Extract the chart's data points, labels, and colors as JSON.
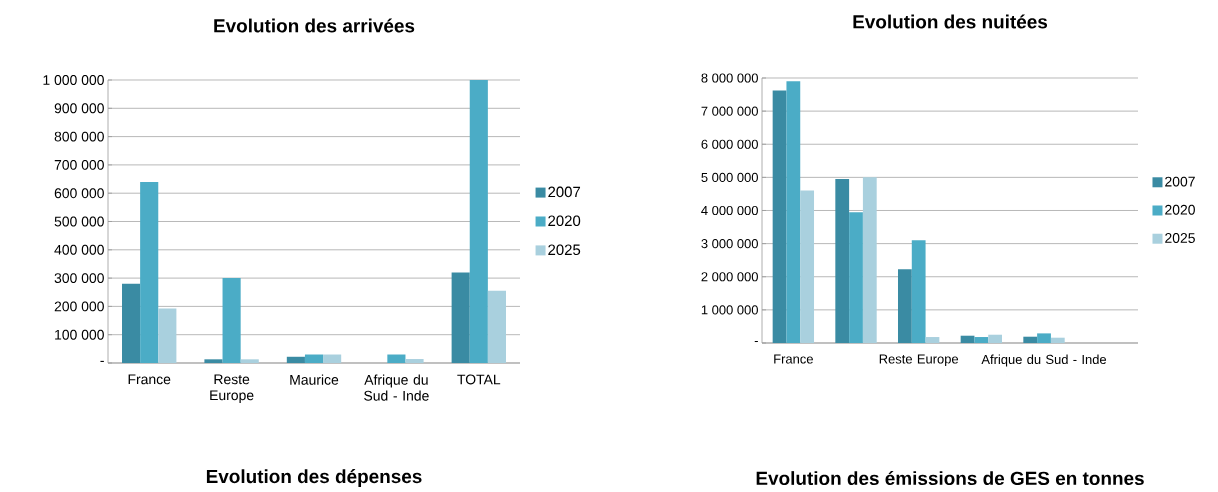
{
  "chart_data": [
    {
      "type": "bar",
      "title": "Evolution des arrivées",
      "categories": [
        "France",
        "Reste Europe",
        "Maurice",
        "Afrique du Sud - Inde",
        "TOTAL"
      ],
      "series": [
        {
          "name": "2007",
          "color": "#3a8ba3",
          "values": [
            280000,
            13000,
            22000,
            null,
            320000
          ]
        },
        {
          "name": "2020",
          "color": "#4bacc6",
          "values": [
            640000,
            300000,
            30000,
            30000,
            1000000
          ]
        },
        {
          "name": "2025",
          "color": "#a9d0de",
          "values": [
            193000,
            13000,
            30000,
            14000,
            255000
          ]
        }
      ],
      "ylim": [
        0,
        1000000
      ],
      "yticks": [
        {
          "value": 0,
          "label": "-"
        },
        {
          "value": 100000,
          "label": "100 000"
        },
        {
          "value": 200000,
          "label": "200 000"
        },
        {
          "value": 300000,
          "label": "300 000"
        },
        {
          "value": 400000,
          "label": "400 000"
        },
        {
          "value": 500000,
          "label": "500 000"
        },
        {
          "value": 600000,
          "label": "600 000"
        },
        {
          "value": 700000,
          "label": "700 000"
        },
        {
          "value": 800000,
          "label": "800 000"
        },
        {
          "value": 900000,
          "label": "900 000"
        },
        {
          "value": 1000000,
          "label": "1 000 000"
        }
      ],
      "grid": "y",
      "legend": "right"
    },
    {
      "type": "bar",
      "title": "Evolution des nuitées",
      "categories": [
        "France",
        null,
        "Reste Europe",
        null,
        "Afrique du Sud - Inde",
        null
      ],
      "series": [
        {
          "name": "2007",
          "color": "#3a8ba3",
          "values": [
            7620000,
            4950000,
            2230000,
            220000,
            190000,
            null
          ]
        },
        {
          "name": "2020",
          "color": "#4bacc6",
          "values": [
            7900000,
            3950000,
            3100000,
            180000,
            290000,
            null
          ]
        },
        {
          "name": "2025",
          "color": "#a9d0de",
          "values": [
            4600000,
            5000000,
            180000,
            250000,
            160000,
            null
          ]
        }
      ],
      "ylim": [
        0,
        8000000
      ],
      "yticks": [
        {
          "value": 0,
          "label": "-"
        },
        {
          "value": 1000000,
          "label": "1 000 000"
        },
        {
          "value": 2000000,
          "label": "2 000 000"
        },
        {
          "value": 3000000,
          "label": "3 000 000"
        },
        {
          "value": 4000000,
          "label": "4 000 000"
        },
        {
          "value": 5000000,
          "label": "5 000 000"
        },
        {
          "value": 6000000,
          "label": "6 000 000"
        },
        {
          "value": 7000000,
          "label": "7 000 000"
        },
        {
          "value": 8000000,
          "label": "8 000 000"
        }
      ],
      "grid": "y",
      "legend": "right"
    },
    {
      "type": "other",
      "title": "Evolution des dépenses"
    },
    {
      "type": "other",
      "title": "Evolution des émissions de GES en tonnes"
    }
  ]
}
